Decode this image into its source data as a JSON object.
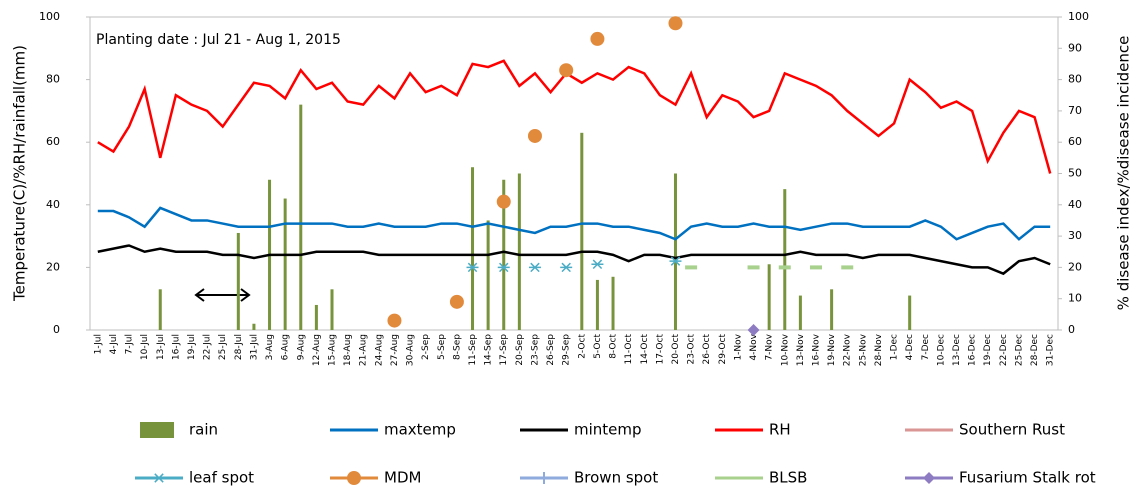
{
  "chart_data": {
    "type": "combo",
    "annotation": "Planting date : Jul 21 - Aug 1, 2015",
    "y_label": "Temperature(C)/%RH/rainfall(mm)",
    "y2_label": "% disease index/%disease incidence",
    "categories": [
      "1-Jul",
      "4-Jul",
      "7-Jul",
      "10-Jul",
      "13-Jul",
      "16-Jul",
      "19-Jul",
      "22-Jul",
      "25-Jul",
      "28-Jul",
      "31-Jul",
      "3-Aug",
      "6-Aug",
      "9-Aug",
      "12-Aug",
      "15-Aug",
      "18-Aug",
      "21-Aug",
      "24-Aug",
      "27-Aug",
      "30-Aug",
      "2-Sep",
      "5-Sep",
      "8-Sep",
      "11-Sep",
      "14-Sep",
      "17-Sep",
      "20-Sep",
      "23-Sep",
      "26-Sep",
      "29-Sep",
      "2-Oct",
      "5-Oct",
      "8-Oct",
      "11-Oct",
      "14-Oct",
      "17-Oct",
      "20-Oct",
      "23-Oct",
      "26-Oct",
      "29-Oct",
      "1-Nov",
      "4-Nov",
      "7-Nov",
      "10-Nov",
      "13-Nov",
      "16-Nov",
      "19-Nov",
      "22-Nov",
      "25-Nov",
      "28-Nov",
      "1-Dec",
      "4-Dec",
      "7-Dec",
      "10-Dec",
      "13-Dec",
      "16-Dec",
      "19-Dec",
      "22-Dec",
      "25-Dec",
      "28-Dec",
      "31-Dec"
    ],
    "ylim": [
      0,
      100
    ],
    "yticks": [
      0,
      20,
      40,
      60,
      80,
      100
    ],
    "y2lim": [
      0,
      100
    ],
    "y2ticks": [
      0,
      10,
      20,
      30,
      40,
      50,
      60,
      70,
      80,
      90,
      100
    ],
    "series": [
      {
        "name": "rain",
        "marker": "bar",
        "color": "#77933c",
        "values": [
          0,
          0,
          0,
          0,
          13,
          0,
          0,
          0,
          0,
          31,
          2,
          48,
          42,
          72,
          8,
          13,
          0,
          0,
          0,
          0,
          0,
          0,
          0,
          0,
          52,
          35,
          48,
          50,
          0,
          0,
          0,
          63,
          16,
          17,
          0,
          0,
          0,
          50,
          0,
          0,
          0,
          0,
          0,
          21,
          45,
          11,
          0,
          13,
          0,
          0,
          0,
          0,
          11,
          0,
          0,
          0,
          0,
          0,
          0,
          0,
          0,
          0
        ]
      },
      {
        "name": "maxtemp",
        "marker": "line",
        "color": "#0070c0",
        "values": [
          38,
          38,
          36,
          33,
          39,
          37,
          35,
          35,
          34,
          33,
          33,
          33,
          34,
          34,
          34,
          34,
          33,
          33,
          34,
          33,
          33,
          33,
          34,
          34,
          33,
          34,
          33,
          32,
          31,
          33,
          33,
          34,
          34,
          33,
          33,
          32,
          31,
          29,
          33,
          34,
          33,
          33,
          34,
          33,
          33,
          32,
          33,
          34,
          34,
          33,
          33,
          33,
          33,
          35,
          33,
          29,
          31,
          33,
          34,
          29,
          33,
          33
        ]
      },
      {
        "name": "mintemp",
        "marker": "line",
        "color": "#000000",
        "values": [
          25,
          26,
          27,
          25,
          26,
          25,
          25,
          25,
          24,
          24,
          23,
          24,
          24,
          24,
          25,
          25,
          25,
          25,
          24,
          24,
          24,
          24,
          24,
          24,
          24,
          24,
          25,
          24,
          24,
          24,
          24,
          25,
          25,
          24,
          22,
          24,
          24,
          23,
          24,
          24,
          24,
          24,
          24,
          24,
          24,
          25,
          24,
          24,
          24,
          23,
          24,
          24,
          24,
          23,
          22,
          21,
          20,
          20,
          18,
          22,
          23,
          21
        ]
      },
      {
        "name": "RH",
        "marker": "line",
        "color": "#ff0000",
        "values": [
          60,
          57,
          65,
          77,
          55,
          75,
          72,
          70,
          65,
          72,
          79,
          78,
          74,
          83,
          77,
          79,
          73,
          72,
          78,
          74,
          82,
          76,
          78,
          75,
          85,
          84,
          86,
          78,
          82,
          76,
          82,
          79,
          82,
          80,
          84,
          82,
          75,
          72,
          82,
          68,
          75,
          73,
          68,
          70,
          82,
          80,
          78,
          75,
          70,
          66,
          62,
          66,
          80,
          76,
          71,
          73,
          70,
          54,
          63,
          70,
          68,
          50
        ]
      },
      {
        "name": "Southern Rust",
        "marker": "line",
        "color": "#d99694",
        "axis": "y2",
        "x": [],
        "values": []
      },
      {
        "name": "leaf spot",
        "marker": "asterisk",
        "color": "#4bacc6",
        "axis": "y2",
        "x": [
          "11-Sep",
          "17-Sep",
          "23-Sep",
          "29-Sep",
          "5-Oct",
          "20-Oct"
        ],
        "values": [
          20,
          20,
          20,
          20,
          21,
          22
        ]
      },
      {
        "name": "MDM",
        "marker": "circle",
        "color": "#e28a3b",
        "axis": "y2",
        "x": [
          "27-Aug",
          "8-Sep",
          "17-Sep",
          "23-Sep",
          "29-Sep",
          "5-Oct",
          "20-Oct"
        ],
        "values": [
          3,
          9,
          41,
          62,
          83,
          93,
          98
        ]
      },
      {
        "name": "Brown spot",
        "marker": "plus",
        "color": "#8faadc",
        "axis": "y2",
        "x": [],
        "values": []
      },
      {
        "name": "BLSB",
        "marker": "dash",
        "color": "#a9d18e",
        "axis": "y2",
        "x": [
          "23-Oct",
          "4-Nov",
          "10-Nov",
          "16-Nov",
          "22-Nov"
        ],
        "values": [
          20,
          20,
          20,
          20,
          20
        ]
      },
      {
        "name": "Fusarium Stalk rot",
        "marker": "diamond",
        "color": "#8e7cc3",
        "axis": "y2",
        "x": [
          "4-Nov"
        ],
        "values": [
          0
        ]
      }
    ]
  }
}
